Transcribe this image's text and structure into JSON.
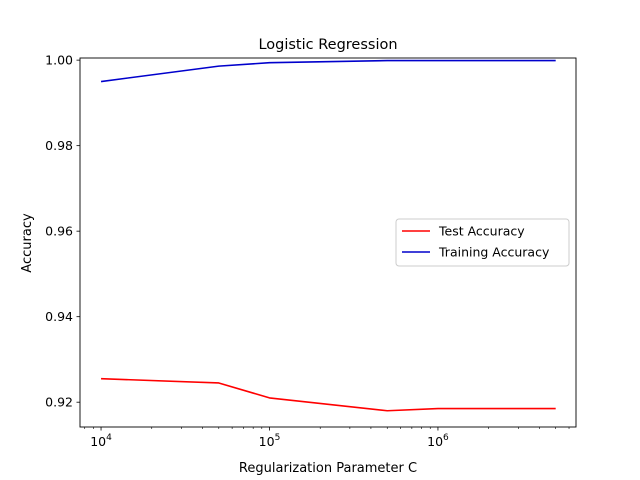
{
  "chart_data": {
    "type": "line",
    "title": "Logistic Regression",
    "xlabel": "Regularization Parameter C",
    "ylabel": "Accuracy",
    "xscale": "log",
    "xlim": [
      7500,
      6600000
    ],
    "ylim": [
      0.9142,
      1.0005
    ],
    "x": [
      10000,
      50000,
      100000,
      500000,
      1000000,
      5000000
    ],
    "series": [
      {
        "name": "Test Accuracy",
        "color": "#ff0000",
        "values": [
          0.9255,
          0.9245,
          0.921,
          0.918,
          0.9185,
          0.9185
        ]
      },
      {
        "name": "Training Accuracy",
        "color": "#0000cc",
        "values": [
          0.995,
          0.9986,
          0.9994,
          0.9999,
          0.9999,
          0.9999
        ]
      }
    ],
    "x_ticks": [
      {
        "value": 10000,
        "base": "10",
        "exp": "4"
      },
      {
        "value": 100000,
        "base": "10",
        "exp": "5"
      },
      {
        "value": 1000000,
        "base": "10",
        "exp": "6"
      }
    ],
    "y_ticks": [
      {
        "value": 0.92,
        "label": "0.92"
      },
      {
        "value": 0.94,
        "label": "0.94"
      },
      {
        "value": 0.96,
        "label": "0.96"
      },
      {
        "value": 0.98,
        "label": "0.98"
      },
      {
        "value": 1.0,
        "label": "1.00"
      }
    ],
    "grid": false,
    "legend": "center-right"
  }
}
